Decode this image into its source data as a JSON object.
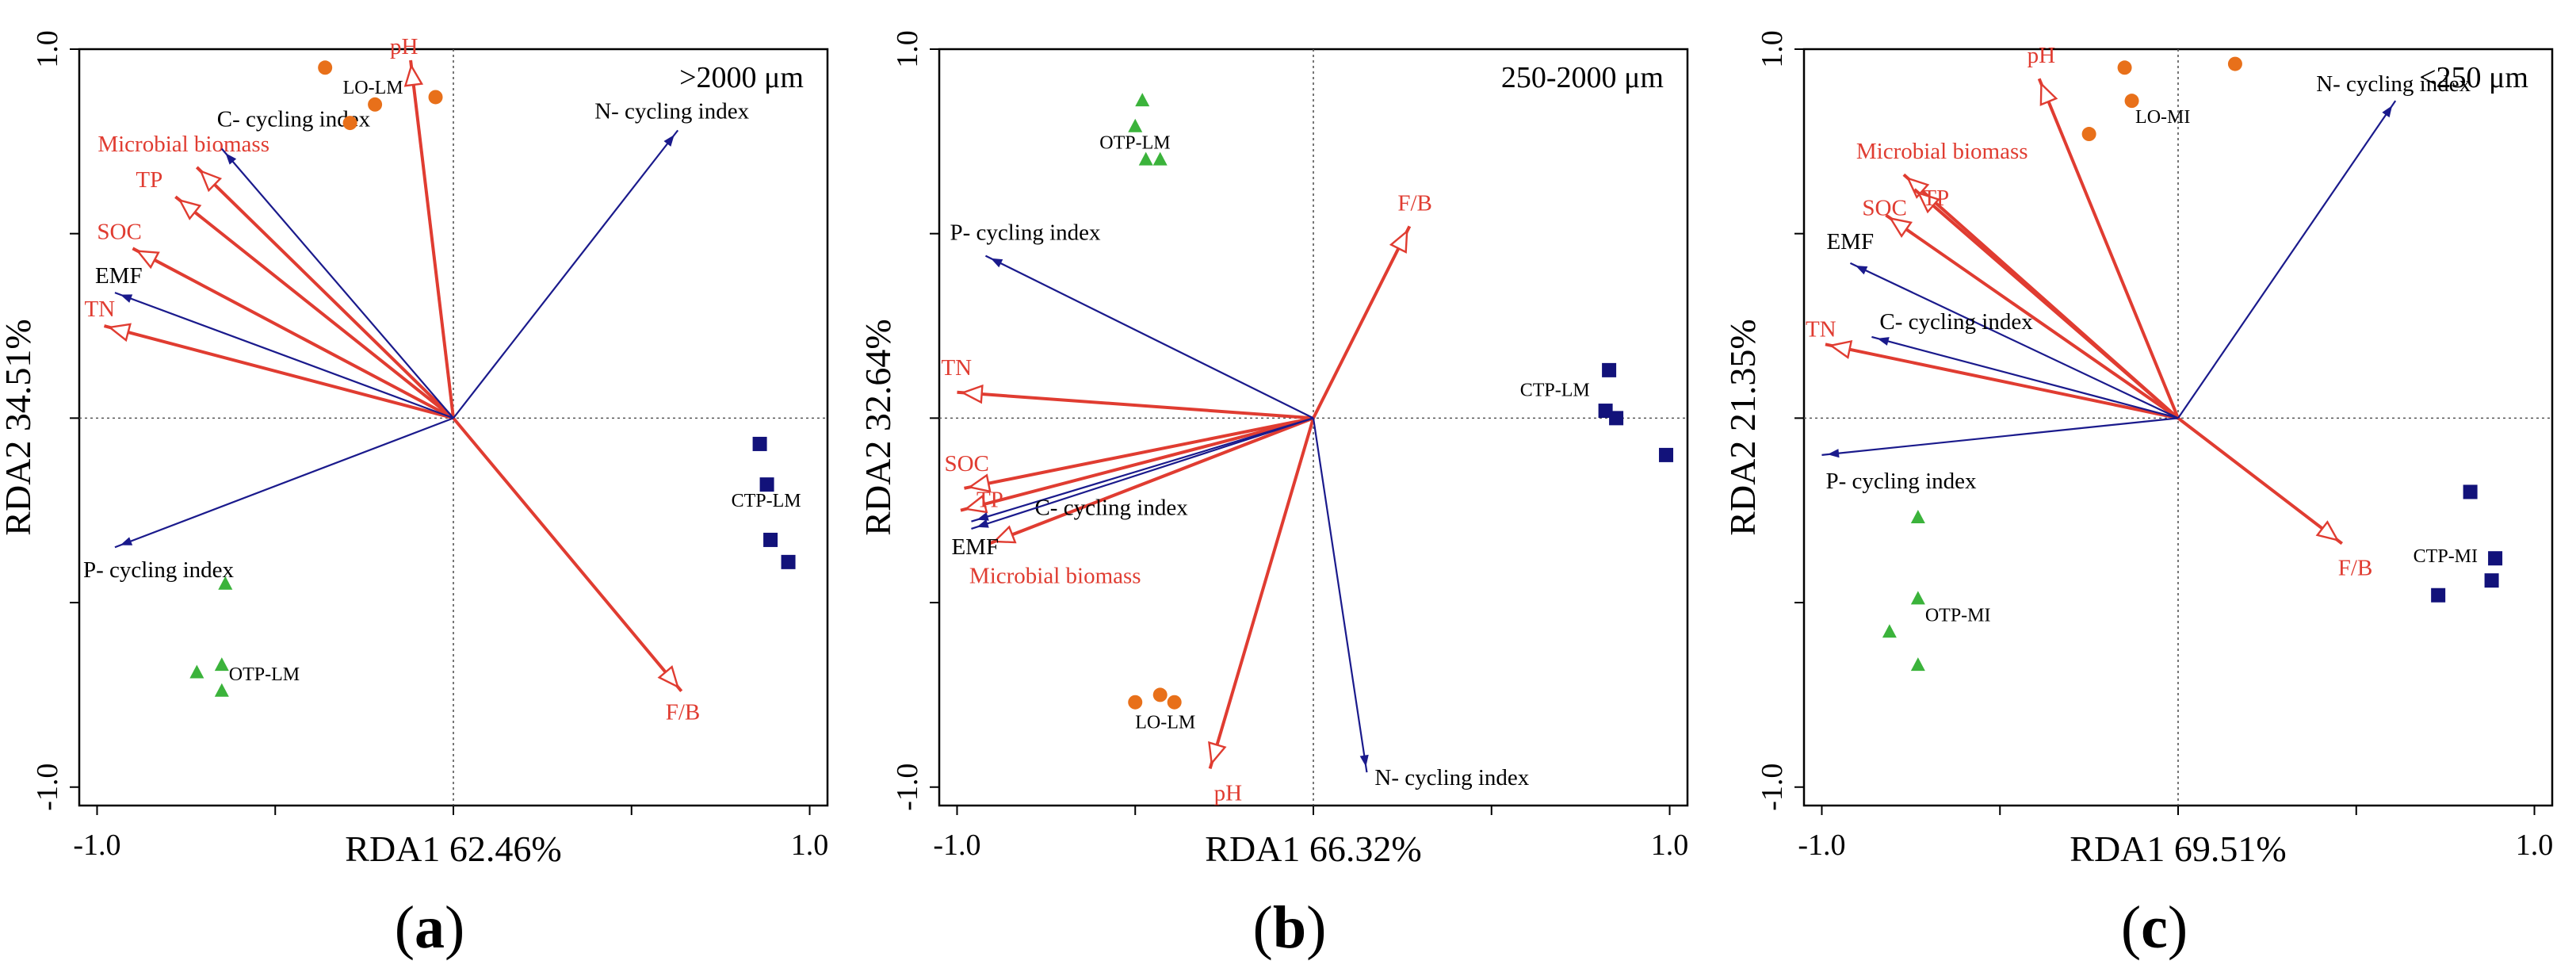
{
  "colors": {
    "red": "#e03c31",
    "blue": "#1a1a8c",
    "orange": "#e8701a",
    "green": "#3bb33b",
    "navy": "#12127a"
  },
  "chart_data": [
    {
      "type": "scatter",
      "panel_label": "a",
      "title": ">2000 μm",
      "xlabel": "RDA1 62.46%",
      "ylabel": "RDA2 34.51%",
      "xlim": [
        -1.05,
        1.05
      ],
      "ylim": [
        -1.05,
        1.0
      ],
      "x_ticks": [
        "-1.0",
        "1.0"
      ],
      "y_ticks": [
        "1.0",
        "-1.0"
      ],
      "arrows": [
        {
          "name": "pH",
          "x": -0.12,
          "y": 0.97,
          "color": "red"
        },
        {
          "name": "Microbial biomass",
          "x": -0.72,
          "y": 0.68,
          "color": "red"
        },
        {
          "name": "TP",
          "x": -0.78,
          "y": 0.6,
          "color": "red"
        },
        {
          "name": "SOC",
          "x": -0.9,
          "y": 0.46,
          "color": "red"
        },
        {
          "name": "TN",
          "x": -0.98,
          "y": 0.25,
          "color": "red"
        },
        {
          "name": "F/B",
          "x": 0.64,
          "y": -0.74,
          "color": "red"
        },
        {
          "name": "C- cycling index",
          "x": -0.65,
          "y": 0.73,
          "color": "blue"
        },
        {
          "name": "N- cycling index",
          "x": 0.63,
          "y": 0.78,
          "color": "blue"
        },
        {
          "name": "EMF",
          "x": -0.95,
          "y": 0.34,
          "color": "blue"
        },
        {
          "name": "P- cycling index",
          "x": -0.95,
          "y": -0.35,
          "color": "blue"
        }
      ],
      "groups": [
        {
          "name": "LO-LM",
          "marker": "circle",
          "color": "orange",
          "points": [
            [
              -0.36,
              0.95
            ],
            [
              -0.29,
              0.8
            ],
            [
              -0.22,
              0.85
            ],
            [
              -0.05,
              0.87
            ]
          ]
        },
        {
          "name": "CTP-LM",
          "marker": "square",
          "color": "navy",
          "points": [
            [
              0.86,
              -0.07
            ],
            [
              0.88,
              -0.18
            ],
            [
              0.89,
              -0.33
            ],
            [
              0.94,
              -0.39
            ]
          ]
        },
        {
          "name": "OTP-LM",
          "marker": "triangle",
          "color": "green",
          "points": [
            [
              -0.64,
              -0.45
            ],
            [
              -0.72,
              -0.69
            ],
            [
              -0.65,
              -0.67
            ],
            [
              -0.65,
              -0.74
            ]
          ]
        }
      ]
    },
    {
      "type": "scatter",
      "panel_label": "b",
      "title": "250-2000 μm",
      "xlabel": "RDA1 66.32%",
      "ylabel": "RDA2 32.64%",
      "xlim": [
        -1.05,
        1.05
      ],
      "ylim": [
        -1.05,
        1.0
      ],
      "x_ticks": [
        "-1.0",
        "1.0"
      ],
      "y_ticks": [
        "1.0",
        "-1.0"
      ],
      "arrows": [
        {
          "name": "F/B",
          "x": 0.27,
          "y": 0.52,
          "color": "red"
        },
        {
          "name": "TN",
          "x": -1.0,
          "y": 0.07,
          "color": "red"
        },
        {
          "name": "SOC",
          "x": -0.98,
          "y": -0.19,
          "color": "red"
        },
        {
          "name": "TP",
          "x": -0.99,
          "y": -0.25,
          "color": "red"
        },
        {
          "name": "Microbial biomass",
          "x": -0.91,
          "y": -0.34,
          "color": "red"
        },
        {
          "name": "pH",
          "x": -0.29,
          "y": -0.95,
          "color": "red"
        },
        {
          "name": "P- cycling index",
          "x": -0.92,
          "y": 0.44,
          "color": "blue"
        },
        {
          "name": "C- cycling index",
          "x": -0.96,
          "y": -0.28,
          "color": "blue"
        },
        {
          "name": "EMF",
          "x": -0.96,
          "y": -0.3,
          "color": "blue"
        },
        {
          "name": "N- cycling index",
          "x": 0.15,
          "y": -0.96,
          "color": "blue"
        }
      ],
      "groups": [
        {
          "name": "OTP-LM",
          "marker": "triangle",
          "color": "green",
          "points": [
            [
              -0.48,
              0.86
            ],
            [
              -0.5,
              0.79
            ],
            [
              -0.47,
              0.7
            ],
            [
              -0.43,
              0.7
            ]
          ]
        },
        {
          "name": "CTP-LM",
          "marker": "square",
          "color": "navy",
          "points": [
            [
              0.83,
              0.13
            ],
            [
              0.82,
              0.02
            ],
            [
              0.85,
              0.0
            ],
            [
              0.99,
              -0.1
            ]
          ]
        },
        {
          "name": "LO-LM",
          "marker": "circle",
          "color": "orange",
          "points": [
            [
              -0.5,
              -0.77
            ],
            [
              -0.43,
              -0.75
            ],
            [
              -0.39,
              -0.77
            ]
          ]
        }
      ]
    },
    {
      "type": "scatter",
      "panel_label": "c",
      "title": "<250 μm",
      "xlabel": "RDA1 69.51%",
      "ylabel": "RDA2 21.35%",
      "xlim": [
        -1.05,
        1.05
      ],
      "ylim": [
        -1.05,
        1.0
      ],
      "x_ticks": [
        "-1.0",
        "1.0"
      ],
      "y_ticks": [
        "1.0",
        "-1.0"
      ],
      "arrows": [
        {
          "name": "pH",
          "x": -0.39,
          "y": 0.92,
          "color": "red"
        },
        {
          "name": "Microbial biomass",
          "x": -0.77,
          "y": 0.66,
          "color": "red"
        },
        {
          "name": "TP",
          "x": -0.74,
          "y": 0.62,
          "color": "red"
        },
        {
          "name": "SOC",
          "x": -0.82,
          "y": 0.55,
          "color": "red"
        },
        {
          "name": "TN",
          "x": -0.99,
          "y": 0.2,
          "color": "red"
        },
        {
          "name": "F/B",
          "x": 0.46,
          "y": -0.34,
          "color": "red"
        },
        {
          "name": "N- cycling index",
          "x": 0.61,
          "y": 0.86,
          "color": "blue"
        },
        {
          "name": "EMF",
          "x": -0.92,
          "y": 0.42,
          "color": "blue"
        },
        {
          "name": "C- cycling index",
          "x": -0.86,
          "y": 0.22,
          "color": "blue"
        },
        {
          "name": "P- cycling index",
          "x": -1.0,
          "y": -0.1,
          "color": "blue"
        }
      ],
      "groups": [
        {
          "name": "LO-MI",
          "marker": "circle",
          "color": "orange",
          "points": [
            [
              -0.15,
              0.95
            ],
            [
              0.16,
              0.96
            ],
            [
              -0.13,
              0.86
            ],
            [
              -0.25,
              0.77
            ]
          ]
        },
        {
          "name": "CTP-MI",
          "marker": "square",
          "color": "navy",
          "points": [
            [
              0.82,
              -0.2
            ],
            [
              0.89,
              -0.38
            ],
            [
              0.88,
              -0.44
            ],
            [
              0.73,
              -0.48
            ]
          ]
        },
        {
          "name": "OTP-MI",
          "marker": "triangle",
          "color": "green",
          "points": [
            [
              -0.73,
              -0.27
            ],
            [
              -0.73,
              -0.49
            ],
            [
              -0.81,
              -0.58
            ],
            [
              -0.73,
              -0.67
            ]
          ]
        }
      ]
    }
  ]
}
